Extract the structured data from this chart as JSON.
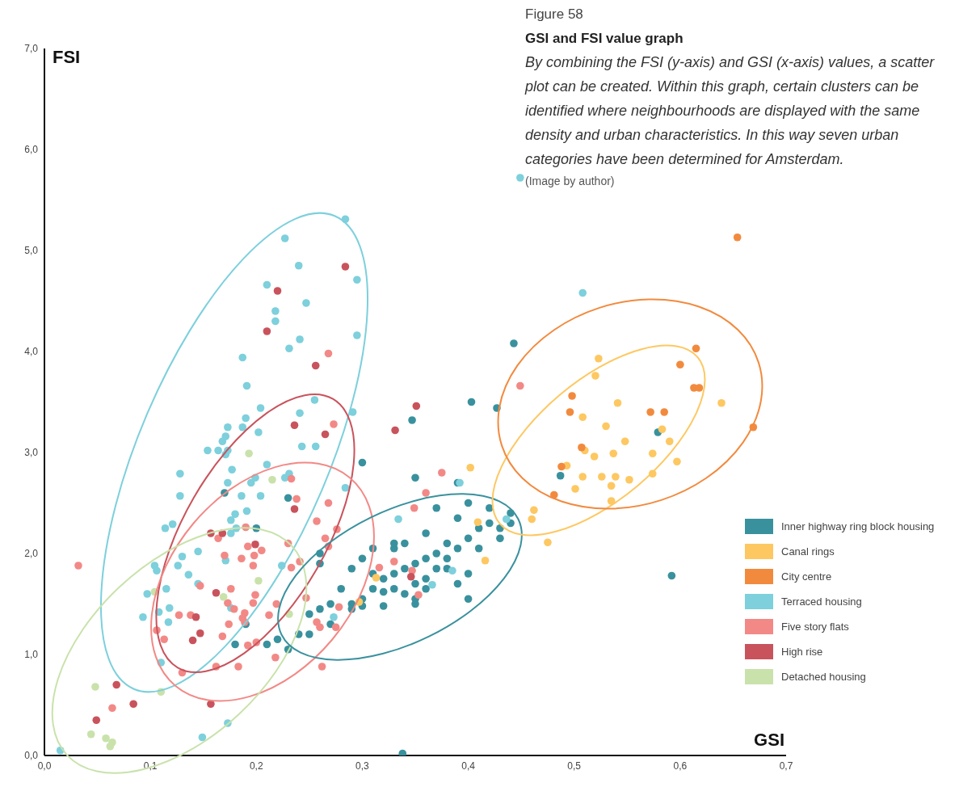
{
  "chart_data": {
    "type": "scatter",
    "title": "GSI and FSI value graph",
    "xlabel": "GSI",
    "ylabel": "FSI",
    "annotations": [
      "Figure 58",
      "By combining the FSI (y-axis) and GSI (x-axis) values, a scatter plot can be created. Within this graph, certain clusters can be identified where neighbourhoods are displayed with the same density and urban characteristics. In this way seven urban categories have been determined for Amsterdam.",
      "(Image by author)"
    ],
    "xlim": [
      0,
      0.7
    ],
    "ylim": [
      0,
      7
    ],
    "xticks": [
      {
        "value": 0,
        "label": "0,0"
      },
      {
        "value": 0.1,
        "label": "0,1"
      },
      {
        "value": 0.2,
        "label": "0,2"
      },
      {
        "value": 0.3,
        "label": "0,3"
      },
      {
        "value": 0.4,
        "label": "0,4"
      },
      {
        "value": 0.5,
        "label": "0,5"
      },
      {
        "value": 0.6,
        "label": "0,6"
      },
      {
        "value": 0.7,
        "label": "0,7"
      }
    ],
    "yticks": [
      {
        "value": 0,
        "label": "0,0"
      },
      {
        "value": 1,
        "label": "1,0"
      },
      {
        "value": 2,
        "label": "2,0"
      },
      {
        "value": 3,
        "label": "3,0"
      },
      {
        "value": 4,
        "label": "4,0"
      },
      {
        "value": 5,
        "label": "5,0"
      },
      {
        "value": 6,
        "label": "6,0"
      },
      {
        "value": 7,
        "label": "7,0"
      }
    ],
    "legend": "right",
    "marker": "circle",
    "series": [
      {
        "name": "Inner highway ring block housing",
        "color": "#3a919e",
        "x": [
          0.3,
          0.31,
          0.32,
          0.33,
          0.34,
          0.35,
          0.36,
          0.37,
          0.38,
          0.39,
          0.4,
          0.41,
          0.42,
          0.43,
          0.44,
          0.42,
          0.39,
          0.37,
          0.4,
          0.36,
          0.34,
          0.33,
          0.31,
          0.3,
          0.29,
          0.28,
          0.27,
          0.26,
          0.25,
          0.24,
          0.25,
          0.23,
          0.22,
          0.27,
          0.29,
          0.3,
          0.32,
          0.33,
          0.34,
          0.35,
          0.36,
          0.37,
          0.38,
          0.39,
          0.4,
          0.41,
          0.43,
          0.4,
          0.36,
          0.31,
          0.32,
          0.35,
          0.29,
          0.35,
          0.38,
          0.33,
          0.26,
          0.23,
          0.2,
          0.17,
          0.18,
          0.19,
          0.21,
          0.26,
          0.3,
          0.35,
          0.347,
          0.403,
          0.427,
          0.443,
          0.39,
          0.487,
          0.579,
          0.592,
          0.338,
          0.44
        ],
        "values": [
          1.55,
          1.65,
          1.75,
          1.8,
          1.85,
          1.9,
          1.95,
          2.0,
          2.1,
          2.05,
          2.15,
          2.25,
          2.3,
          2.25,
          2.3,
          2.45,
          2.35,
          2.45,
          2.5,
          2.2,
          2.1,
          2.05,
          2.05,
          1.95,
          1.85,
          1.65,
          1.5,
          1.45,
          1.4,
          1.2,
          1.2,
          1.05,
          1.15,
          1.3,
          1.45,
          1.48,
          1.48,
          1.65,
          1.6,
          1.7,
          1.75,
          1.85,
          1.95,
          1.7,
          1.8,
          2.05,
          2.15,
          1.55,
          1.65,
          1.8,
          1.62,
          1.5,
          1.5,
          1.55,
          1.85,
          2.1,
          1.9,
          2.55,
          2.25,
          2.6,
          1.1,
          1.3,
          1.1,
          2.0,
          2.9,
          2.75,
          3.32,
          3.5,
          3.44,
          4.08,
          2.7,
          2.77,
          3.2,
          1.78,
          0.02,
          2.4
        ]
      },
      {
        "name": "Canal rings",
        "color": "#fdc862",
        "x": [
          0.523,
          0.52,
          0.541,
          0.508,
          0.53,
          0.639,
          0.583,
          0.59,
          0.548,
          0.51,
          0.519,
          0.537,
          0.574,
          0.597,
          0.493,
          0.508,
          0.526,
          0.539,
          0.552,
          0.574,
          0.535,
          0.501,
          0.535,
          0.462,
          0.46,
          0.475,
          0.402,
          0.409,
          0.416,
          0.313,
          0.297
        ],
        "values": [
          3.93,
          3.76,
          3.49,
          3.35,
          3.26,
          3.49,
          3.23,
          3.11,
          3.11,
          3.02,
          2.96,
          2.99,
          2.99,
          2.91,
          2.87,
          2.76,
          2.76,
          2.76,
          2.73,
          2.79,
          2.67,
          2.64,
          2.52,
          2.43,
          2.34,
          2.11,
          2.85,
          2.31,
          1.93,
          1.76,
          1.52
        ]
      },
      {
        "name": "City centre",
        "color": "#f28a3e",
        "x": [
          0.654,
          0.615,
          0.6,
          0.613,
          0.618,
          0.498,
          0.496,
          0.572,
          0.585,
          0.669,
          0.507,
          0.488,
          0.481
        ],
        "values": [
          5.13,
          4.03,
          3.87,
          3.64,
          3.64,
          3.56,
          3.4,
          3.4,
          3.4,
          3.25,
          3.05,
          2.86,
          2.58
        ]
      },
      {
        "name": "Terraced housing",
        "color": "#7dd0dc",
        "x": [
          0.284,
          0.227,
          0.24,
          0.295,
          0.21,
          0.247,
          0.218,
          0.218,
          0.295,
          0.241,
          0.231,
          0.187,
          0.191,
          0.255,
          0.204,
          0.291,
          0.241,
          0.19,
          0.173,
          0.187,
          0.202,
          0.171,
          0.168,
          0.243,
          0.256,
          0.154,
          0.164,
          0.173,
          0.171,
          0.21,
          0.128,
          0.177,
          0.199,
          0.195,
          0.173,
          0.227,
          0.231,
          0.284,
          0.128,
          0.186,
          0.204,
          0.191,
          0.18,
          0.176,
          0.181,
          0.176,
          0.114,
          0.121,
          0.145,
          0.13,
          0.104,
          0.106,
          0.126,
          0.171,
          0.224,
          0.136,
          0.145,
          0.115,
          0.097,
          0.118,
          0.108,
          0.093,
          0.117,
          0.176,
          0.273,
          0.11,
          0.173,
          0.149,
          0.015,
          0.449,
          0.508,
          0.392,
          0.436,
          0.385,
          0.366,
          0.334
        ],
        "values": [
          5.31,
          5.12,
          4.85,
          4.71,
          4.66,
          4.48,
          4.4,
          4.3,
          4.16,
          4.12,
          4.03,
          3.94,
          3.66,
          3.52,
          3.44,
          3.4,
          3.39,
          3.34,
          3.25,
          3.25,
          3.2,
          3.16,
          3.11,
          3.06,
          3.06,
          3.02,
          3.02,
          3.02,
          2.98,
          2.88,
          2.79,
          2.83,
          2.75,
          2.7,
          2.7,
          2.75,
          2.79,
          2.65,
          2.57,
          2.57,
          2.57,
          2.42,
          2.39,
          2.33,
          2.25,
          2.2,
          2.25,
          2.29,
          2.02,
          1.97,
          1.88,
          1.83,
          1.88,
          1.93,
          1.88,
          1.79,
          1.7,
          1.65,
          1.6,
          1.46,
          1.42,
          1.37,
          1.32,
          1.46,
          1.37,
          0.92,
          0.32,
          0.18,
          0.05,
          5.72,
          4.58,
          2.7,
          2.34,
          1.83,
          1.69,
          2.34
        ]
      },
      {
        "name": "Five story flats",
        "color": "#f28986",
        "x": [
          0.032,
          0.238,
          0.268,
          0.19,
          0.164,
          0.257,
          0.265,
          0.276,
          0.192,
          0.205,
          0.23,
          0.268,
          0.17,
          0.186,
          0.198,
          0.197,
          0.241,
          0.233,
          0.147,
          0.176,
          0.199,
          0.247,
          0.173,
          0.197,
          0.219,
          0.179,
          0.189,
          0.278,
          0.127,
          0.138,
          0.187,
          0.212,
          0.189,
          0.174,
          0.257,
          0.26,
          0.275,
          0.106,
          0.113,
          0.168,
          0.192,
          0.2,
          0.218,
          0.162,
          0.183,
          0.262,
          0.13,
          0.064,
          0.268,
          0.273,
          0.233,
          0.375,
          0.36,
          0.349,
          0.33,
          0.316,
          0.347,
          0.353,
          0.449
        ],
        "values": [
          1.88,
          2.54,
          2.5,
          2.26,
          2.15,
          2.32,
          2.15,
          2.24,
          2.07,
          2.03,
          2.1,
          2.07,
          1.98,
          1.95,
          1.98,
          1.88,
          1.92,
          1.86,
          1.68,
          1.65,
          1.59,
          1.56,
          1.51,
          1.51,
          1.5,
          1.45,
          1.41,
          1.47,
          1.39,
          1.39,
          1.36,
          1.39,
          1.32,
          1.3,
          1.32,
          1.27,
          1.27,
          1.24,
          1.15,
          1.18,
          1.09,
          1.12,
          0.97,
          0.88,
          0.88,
          0.88,
          0.82,
          0.47,
          3.98,
          3.28,
          2.74,
          2.8,
          2.6,
          2.45,
          1.92,
          1.86,
          1.83,
          1.59,
          3.66
        ]
      },
      {
        "name": "High rise",
        "color": "#c9535c",
        "x": [
          0.284,
          0.22,
          0.21,
          0.256,
          0.236,
          0.265,
          0.236,
          0.157,
          0.168,
          0.199,
          0.162,
          0.143,
          0.147,
          0.14,
          0.068,
          0.084,
          0.049,
          0.157,
          0.351,
          0.331,
          0.346
        ],
        "values": [
          4.84,
          4.6,
          4.2,
          3.86,
          3.27,
          3.18,
          2.44,
          2.2,
          2.2,
          2.09,
          1.61,
          1.37,
          1.21,
          1.14,
          0.7,
          0.51,
          0.35,
          0.51,
          3.46,
          3.22,
          1.77
        ]
      },
      {
        "name": "Detached housing",
        "color": "#c9e2ab",
        "x": [
          0.048,
          0.044,
          0.058,
          0.064,
          0.062,
          0.11,
          0.104,
          0.169,
          0.202,
          0.231,
          0.193,
          0.215
        ],
        "values": [
          0.68,
          0.21,
          0.17,
          0.13,
          0.09,
          0.63,
          1.62,
          1.57,
          1.73,
          1.4,
          2.99,
          2.73
        ]
      }
    ]
  }
}
